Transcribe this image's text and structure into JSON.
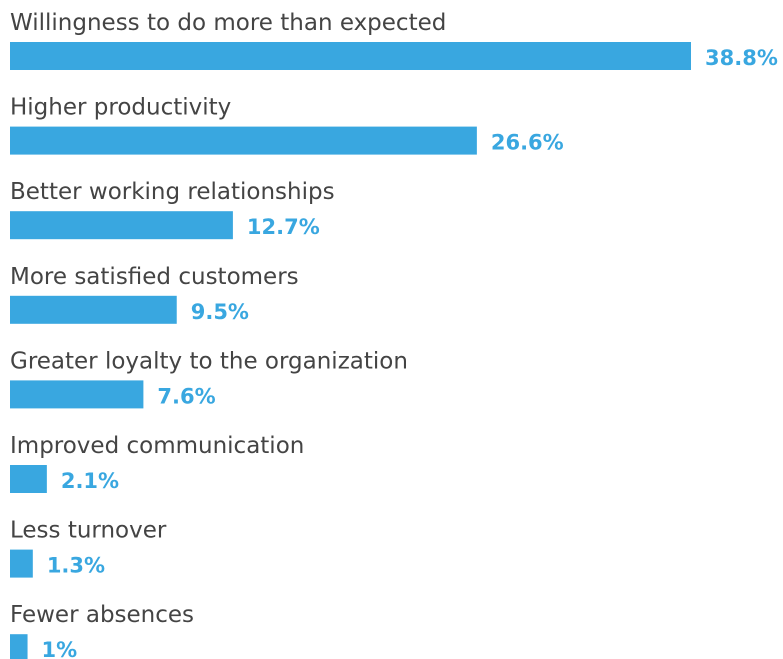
{
  "chart_data": {
    "type": "bar",
    "orientation": "horizontal",
    "categories": [
      "Willingness to do more than expected",
      "Higher productivity",
      "Better working relationships",
      "More satisfied customers",
      "Greater loyalty to the organization",
      "Improved communication",
      "Less turnover",
      "Fewer absences"
    ],
    "values": [
      38.8,
      26.6,
      12.7,
      9.5,
      7.6,
      2.1,
      1.3,
      1
    ],
    "value_labels": [
      "38.8%",
      "26.6%",
      "12.7%",
      "9.5%",
      "7.6%",
      "2.1%",
      "1.3%",
      "1%"
    ],
    "xlim": [
      0,
      38.8
    ],
    "grid": false,
    "legend": "none",
    "colors": {
      "bar": "#39a7e0",
      "value_label": "#39a7e0",
      "category_label": "#444444"
    }
  }
}
